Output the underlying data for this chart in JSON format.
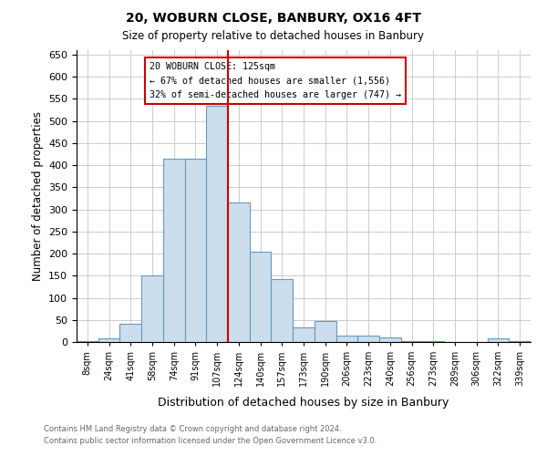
{
  "title": "20, WOBURN CLOSE, BANBURY, OX16 4FT",
  "subtitle": "Size of property relative to detached houses in Banbury",
  "xlabel": "Distribution of detached houses by size in Banbury",
  "ylabel": "Number of detached properties",
  "bar_color": "#ccdded",
  "bar_edge_color": "#6699bb",
  "categories": [
    "8sqm",
    "24sqm",
    "41sqm",
    "58sqm",
    "74sqm",
    "91sqm",
    "107sqm",
    "124sqm",
    "140sqm",
    "157sqm",
    "173sqm",
    "190sqm",
    "206sqm",
    "223sqm",
    "240sqm",
    "256sqm",
    "273sqm",
    "289sqm",
    "306sqm",
    "322sqm",
    "339sqm"
  ],
  "values": [
    3,
    8,
    42,
    150,
    415,
    415,
    535,
    315,
    205,
    142,
    33,
    48,
    15,
    15,
    10,
    3,
    3,
    1,
    1,
    8,
    3
  ],
  "vline_color": "#cc0000",
  "ylim": [
    0,
    660
  ],
  "yticks": [
    0,
    50,
    100,
    150,
    200,
    250,
    300,
    350,
    400,
    450,
    500,
    550,
    600,
    650
  ],
  "annotation_title": "20 WOBURN CLOSE: 125sqm",
  "annotation_line2": "← 67% of detached houses are smaller (1,556)",
  "annotation_line3": "32% of semi-detached houses are larger (747) →",
  "annotation_box_color": "#cc0000",
  "footnote1": "Contains HM Land Registry data © Crown copyright and database right 2024.",
  "footnote2": "Contains public sector information licensed under the Open Government Licence v3.0.",
  "background_color": "#ffffff",
  "grid_color": "#cccccc"
}
